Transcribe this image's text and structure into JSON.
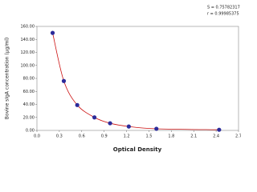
{
  "chart_data": {
    "type": "scatter",
    "x_label": "Optical Density",
    "y_label": "Bovine sIgA concentration (μg/ml)",
    "annotations": [
      "S = 0.75782317",
      "r = 0.99985375"
    ],
    "x": [
      0.21,
      0.36,
      0.54,
      0.77,
      0.98,
      1.23,
      1.6,
      2.44
    ],
    "series": [
      {
        "color": "#2b2b9a",
        "line_color": "#cc1111",
        "values": [
          150,
          76,
          39,
          20,
          11,
          6,
          2.5,
          1
        ]
      }
    ],
    "xlim": [
      0,
      2.7
    ],
    "xticks": [
      {
        "value": 0,
        "label": "0.0"
      },
      0.3,
      0.6,
      0.9,
      1.2,
      1.5,
      1.8,
      2.1,
      2.4,
      {
        "value": 2.7,
        "label": "2.7"
      }
    ],
    "ylim": [
      0,
      160
    ],
    "yticks": [
      {
        "value": 0,
        "label": "0.00"
      },
      {
        "value": 20,
        "label": "20.00"
      },
      {
        "value": 40,
        "label": "40.00"
      },
      {
        "value": 60,
        "label": "60.00"
      },
      {
        "value": 80,
        "label": "80.00"
      },
      {
        "value": 100,
        "label": "100.00"
      },
      {
        "value": 120,
        "label": "120.00"
      },
      {
        "value": 140,
        "label": "140.00"
      },
      {
        "value": 160,
        "label": "160.00"
      }
    ]
  }
}
